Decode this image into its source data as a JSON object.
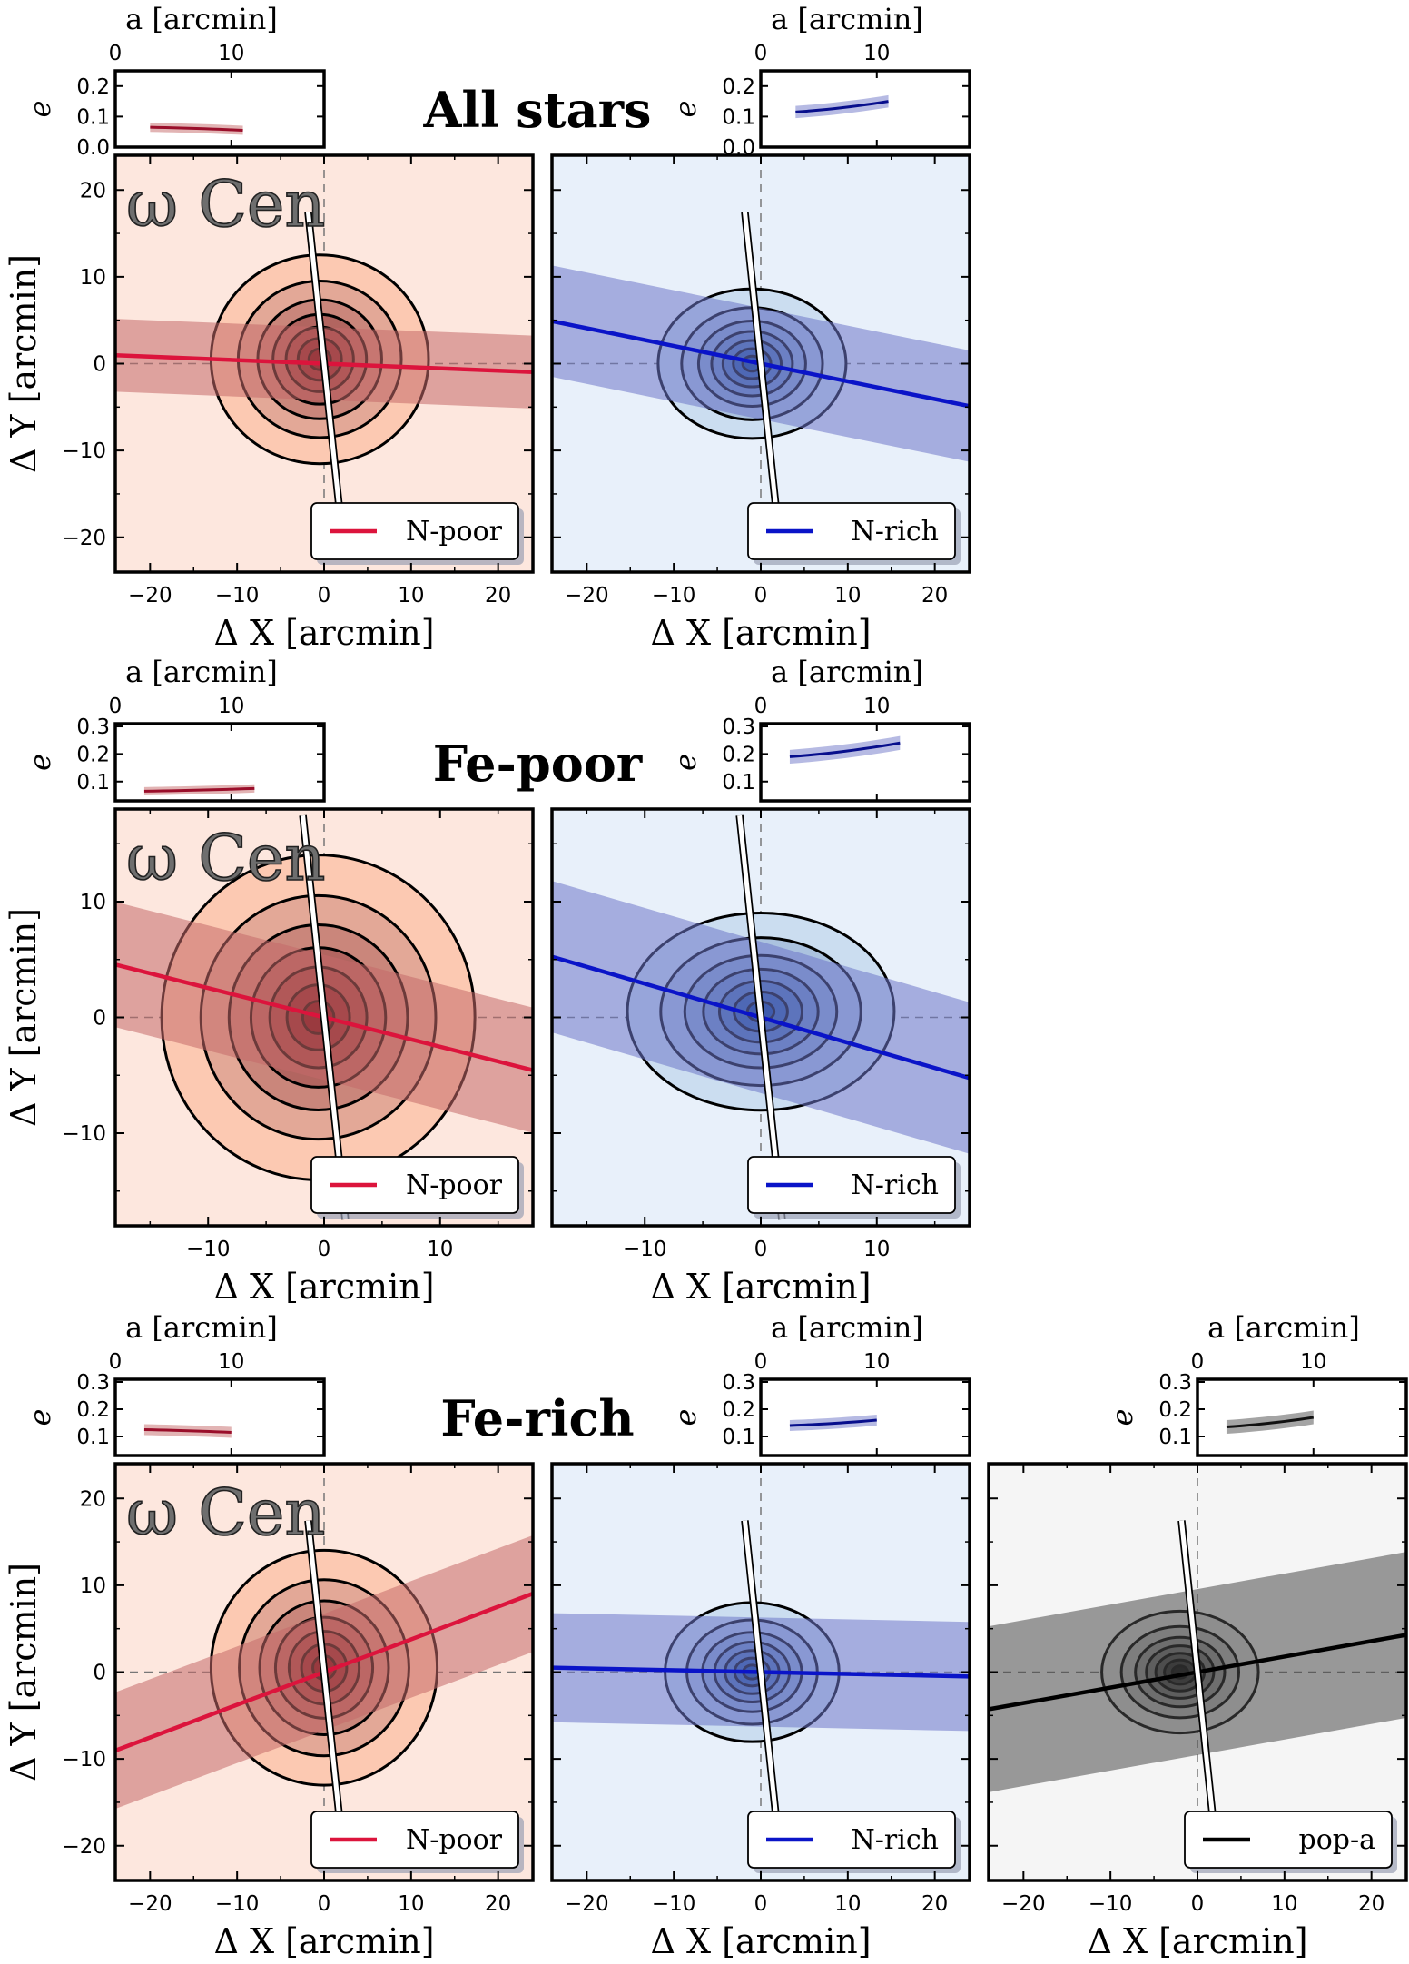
{
  "cluster_name": "ω Cen",
  "legend_texts": [
    "N-poor",
    "N-rich",
    "pop-a"
  ],
  "colors": {
    "npoor": "#dc143c",
    "npoor_bg": "#fde7de",
    "npoor_band": "#c56a6a",
    "nrich": "#0a14c8",
    "nrich_bg": "#e8f0fa",
    "nrich_band": "#6e76c8",
    "popa": "#000000",
    "popa_bg": "#f5f5f5",
    "popa_band": "#4a4a4a"
  },
  "axis_labels": {
    "x": "Δ X [arcmin]",
    "y": "Δ Y [arcmin]",
    "inset_x": "a [arcmin]",
    "inset_y": "e"
  },
  "chart_data": [
    {
      "type": "contour",
      "row": 0,
      "col": 0,
      "row_title": "All stars",
      "legend": "N-poor",
      "pop": "npoor",
      "xlabel": "Δ X [arcmin]",
      "ylabel": "Δ Y [arcmin]",
      "xlim": [
        -24,
        24
      ],
      "ylim": [
        -24,
        24
      ],
      "xticks": [
        -20,
        -10,
        0,
        10,
        20
      ],
      "yticks": [
        -20,
        -10,
        0,
        10,
        20
      ],
      "show_cluster_name": true,
      "density_center": [
        -0.5,
        0.5
      ],
      "outer_contour_radii": [
        12.5,
        12
      ],
      "axis_angle_deg": -2.3,
      "band_halfwidth_deg": 4,
      "inset": {
        "xlabel": "a [arcmin]",
        "ylabel": "e",
        "xlim": [
          0,
          18
        ],
        "ylim": [
          0,
          0.25
        ],
        "xticks": [
          0,
          10
        ],
        "yticks": [
          0.0,
          0.1,
          0.2
        ],
        "a": [
          3,
          11
        ],
        "e": [
          0.065,
          0.055
        ],
        "err": 0.015
      }
    },
    {
      "type": "contour",
      "row": 0,
      "col": 1,
      "legend": "N-rich",
      "pop": "nrich",
      "xlabel": "Δ X [arcmin]",
      "ylabel": "",
      "xlim": [
        -24,
        24
      ],
      "ylim": [
        -24,
        24
      ],
      "xticks": [
        -20,
        -10,
        0,
        10,
        20
      ],
      "yticks": [
        -20,
        -10,
        0,
        10,
        20
      ],
      "show_cluster_name": false,
      "density_center": [
        -1,
        0
      ],
      "outer_contour_radii": [
        10.8,
        8.6
      ],
      "axis_angle_deg": -11.5,
      "band_halfwidth_deg": 6,
      "inset": {
        "xlabel": "a [arcmin]",
        "ylabel": "e",
        "xlim": [
          0,
          18
        ],
        "ylim": [
          0,
          0.25
        ],
        "xticks": [
          0,
          10
        ],
        "yticks": [
          0.0,
          0.1,
          0.2
        ],
        "a": [
          3,
          11
        ],
        "e": [
          0.115,
          0.15
        ],
        "err": 0.02
      }
    },
    {
      "type": "contour",
      "row": 1,
      "col": 0,
      "row_title": "Fe-poor",
      "legend": "N-poor",
      "pop": "npoor",
      "xlabel": "Δ X [arcmin]",
      "ylabel": "Δ Y [arcmin]",
      "xlim": [
        -18,
        18
      ],
      "ylim": [
        -18,
        18
      ],
      "xticks": [
        -10,
        0,
        10
      ],
      "yticks": [
        -10,
        0,
        10
      ],
      "show_cluster_name": true,
      "density_center": [
        -0.5,
        0
      ],
      "outer_contour_radii": [
        13.5,
        14
      ],
      "axis_angle_deg": -14.2,
      "band_halfwidth_deg": 5,
      "inset": {
        "xlabel": "a [arcmin]",
        "ylabel": "e",
        "xlim": [
          0,
          18
        ],
        "ylim": [
          0.03,
          0.31
        ],
        "xticks": [
          0,
          10
        ],
        "yticks": [
          0.1,
          0.2,
          0.3
        ],
        "a": [
          2.5,
          12
        ],
        "e": [
          0.065,
          0.075
        ],
        "err": 0.015
      }
    },
    {
      "type": "contour",
      "row": 1,
      "col": 1,
      "legend": "N-rich",
      "pop": "nrich",
      "xlabel": "Δ X [arcmin]",
      "ylabel": "",
      "xlim": [
        -18,
        18
      ],
      "ylim": [
        -18,
        18
      ],
      "xticks": [
        -10,
        0,
        10
      ],
      "yticks": [
        -10,
        0,
        10
      ],
      "show_cluster_name": false,
      "density_center": [
        0,
        0.5
      ],
      "outer_contour_radii": [
        11.5,
        8.5
      ],
      "axis_angle_deg": -16.2,
      "band_halfwidth_deg": 6,
      "inset": {
        "xlabel": "a [arcmin]",
        "ylabel": "e",
        "xlim": [
          0,
          18
        ],
        "ylim": [
          0.03,
          0.31
        ],
        "xticks": [
          0,
          10
        ],
        "yticks": [
          0.1,
          0.2,
          0.3
        ],
        "a": [
          2.5,
          12
        ],
        "e": [
          0.19,
          0.24
        ],
        "err": 0.025
      }
    },
    {
      "type": "contour",
      "row": 2,
      "col": 0,
      "row_title": "Fe-rich",
      "legend": "N-poor",
      "pop": "npoor",
      "xlabel": "Δ X [arcmin]",
      "ylabel": "Δ Y [arcmin]",
      "xlim": [
        -24,
        24
      ],
      "ylim": [
        -24,
        24
      ],
      "xticks": [
        -20,
        -10,
        0,
        10,
        20
      ],
      "yticks": [
        -20,
        -10,
        0,
        10,
        20
      ],
      "show_cluster_name": true,
      "density_center": [
        0,
        0.5
      ],
      "outer_contour_radii": [
        13,
        13.5
      ],
      "axis_angle_deg": 20.6,
      "band_halfwidth_deg": 6,
      "inset": {
        "xlabel": "a [arcmin]",
        "ylabel": "e",
        "xlim": [
          0,
          18
        ],
        "ylim": [
          0.03,
          0.31
        ],
        "xticks": [
          0,
          10
        ],
        "yticks": [
          0.1,
          0.2,
          0.3
        ],
        "a": [
          2.5,
          10
        ],
        "e": [
          0.125,
          0.115
        ],
        "err": 0.02
      }
    },
    {
      "type": "contour",
      "row": 2,
      "col": 1,
      "legend": "N-rich",
      "pop": "nrich",
      "xlabel": "Δ X [arcmin]",
      "ylabel": "",
      "xlim": [
        -24,
        24
      ],
      "ylim": [
        -24,
        24
      ],
      "xticks": [
        -20,
        -10,
        0,
        10,
        20
      ],
      "yticks": [],
      "show_cluster_name": false,
      "density_center": [
        -1,
        0
      ],
      "outer_contour_radii": [
        10,
        8
      ],
      "axis_angle_deg": -1.2,
      "band_halfwidth_deg": 6,
      "inset": {
        "xlabel": "a [arcmin]",
        "ylabel": "e",
        "xlim": [
          0,
          18
        ],
        "ylim": [
          0.03,
          0.31
        ],
        "xticks": [
          0,
          10
        ],
        "yticks": [
          0.1,
          0.2,
          0.3
        ],
        "a": [
          2.5,
          10
        ],
        "e": [
          0.14,
          0.16
        ],
        "err": 0.02
      }
    },
    {
      "type": "contour",
      "row": 2,
      "col": 2,
      "legend": "pop-a",
      "pop": "popa",
      "xlabel": "Δ X [arcmin]",
      "ylabel": "",
      "xlim": [
        -24,
        24
      ],
      "ylim": [
        -24,
        24
      ],
      "xticks": [
        -20,
        -10,
        0,
        10,
        20
      ],
      "yticks": [],
      "show_cluster_name": false,
      "density_center": [
        -2,
        0
      ],
      "outer_contour_radii": [
        9,
        7
      ],
      "axis_angle_deg": 10.1,
      "band_halfwidth_deg": 9,
      "inset": {
        "xlabel": "a [arcmin]",
        "ylabel": "e",
        "xlim": [
          0,
          18
        ],
        "ylim": [
          0.03,
          0.31
        ],
        "xticks": [
          0,
          10
        ],
        "yticks": [
          0.1,
          0.2,
          0.3
        ],
        "a": [
          2.5,
          10
        ],
        "e": [
          0.135,
          0.17
        ],
        "err": 0.025
      }
    }
  ]
}
